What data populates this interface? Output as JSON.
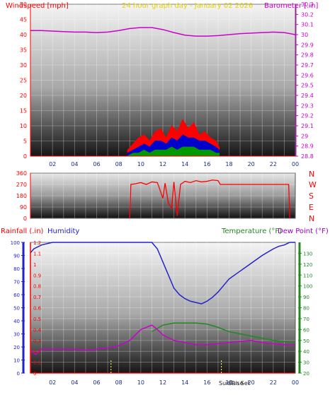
{
  "header": {
    "left_label": "Windspeed [mph]",
    "center_label": "24 hour graph day - January 02 2026",
    "right_label": "Barometer [.in]"
  },
  "direction_letters": [
    "N",
    "W",
    "S",
    "E",
    "N"
  ],
  "lower_header": {
    "rain_label": "Rainfall (.in)",
    "humidity_label": "Humidity",
    "temp_label": "Temperature (°F)",
    "dew_label": "Dew Point (°F)"
  },
  "sun_labels": {
    "sunrise": "Sun Rise",
    "sunset": "Sun Set"
  },
  "colors": {
    "windspeed_label": "#ff0000",
    "header_center": "#ffff00",
    "barometer": "#cc00cc",
    "gust": "#ff0000",
    "avg": "#0000cc",
    "wind_low": "#009900",
    "direction": "#ff0000",
    "humidity": "#2222cc",
    "temperature": "#228822",
    "dewpoint": "#cc00cc",
    "rain_axis": "#ff0000",
    "dew_label": "#9900cc"
  },
  "chart_data": [
    {
      "id": "wind-baro",
      "type": "line",
      "x_ticks": [
        "02",
        "04",
        "06",
        "08",
        "10",
        "12",
        "14",
        "16",
        "18",
        "20",
        "22",
        "00"
      ],
      "y_left_ticks": [
        "0",
        "5",
        "10",
        "15",
        "20",
        "25",
        "30",
        "35",
        "40",
        "45",
        "50"
      ],
      "y_right_ticks": [
        "28.8",
        "28.9",
        "29",
        "29.1",
        "29.2",
        "29.3",
        "29.4",
        "29.5",
        "29.6",
        "29.7",
        "29.8",
        "29.9",
        "30",
        "30.1",
        "30.2",
        "30.3"
      ],
      "ylim_left": [
        0,
        50
      ],
      "ylim_right": [
        28.8,
        30.3
      ],
      "series": [
        {
          "name": "Barometer",
          "axis": "right",
          "x": [
            0,
            1,
            2,
            3,
            4,
            5,
            6,
            7,
            8,
            9,
            10,
            11,
            12,
            13,
            14,
            15,
            16,
            17,
            18,
            19,
            20,
            21,
            22,
            23,
            24
          ],
          "y": [
            30.04,
            30.04,
            30.035,
            30.03,
            30.025,
            30.025,
            30.02,
            30.025,
            30.04,
            30.06,
            30.07,
            30.07,
            30.05,
            30.02,
            29.995,
            29.985,
            29.985,
            29.99,
            30.0,
            30.01,
            30.015,
            30.02,
            30.025,
            30.02,
            30.0
          ]
        },
        {
          "name": "Gust",
          "axis": "left",
          "x": [
            8.8,
            9.3,
            9.8,
            10.3,
            10.8,
            11.3,
            11.8,
            12.3,
            12.8,
            13.3,
            13.8,
            14.3,
            14.8,
            15.3,
            15.8,
            16.3,
            16.8,
            17.1
          ],
          "y": [
            2,
            4,
            6,
            7,
            5,
            8,
            9,
            6,
            10,
            8,
            12,
            9,
            11,
            7,
            8,
            6,
            5,
            3
          ]
        },
        {
          "name": "Average",
          "axis": "left",
          "x": [
            8.8,
            9.3,
            9.8,
            10.3,
            10.8,
            11.3,
            11.8,
            12.3,
            12.8,
            13.3,
            13.8,
            14.3,
            14.8,
            15.3,
            15.8,
            16.3,
            16.8,
            17.1
          ],
          "y": [
            1,
            2,
            3,
            4,
            3,
            5,
            5,
            4,
            6,
            5,
            7,
            6,
            6,
            5,
            5,
            4,
            3,
            2
          ]
        },
        {
          "name": "Low",
          "axis": "left",
          "x": [
            8.8,
            9.3,
            9.8,
            10.3,
            10.8,
            11.3,
            11.8,
            12.3,
            12.8,
            13.3,
            13.8,
            14.3,
            14.8,
            15.3,
            15.8,
            16.3,
            16.8,
            17.1
          ],
          "y": [
            0,
            1,
            1,
            2,
            1,
            2,
            2,
            2,
            3,
            2,
            3,
            3,
            3,
            2,
            2,
            2,
            1,
            1
          ]
        }
      ]
    },
    {
      "id": "direction",
      "type": "line",
      "y_ticks": [
        "0",
        "90",
        "180",
        "270",
        "360"
      ],
      "ylim": [
        0,
        360
      ],
      "series": [
        {
          "name": "Direction",
          "x": [
            9.0,
            9.1,
            9.5,
            10,
            10.5,
            11,
            11.5,
            12,
            12.2,
            12.5,
            12.8,
            13,
            13.3,
            13.6,
            14,
            14.5,
            15,
            15.5,
            16,
            16.5,
            17,
            17.2,
            20,
            22,
            23.4,
            23.5
          ],
          "y": [
            0,
            270,
            275,
            285,
            270,
            290,
            285,
            160,
            280,
            120,
            80,
            290,
            20,
            270,
            295,
            285,
            300,
            290,
            295,
            305,
            300,
            270,
            270,
            270,
            270,
            0
          ]
        }
      ]
    },
    {
      "id": "temp-hum-rain",
      "type": "line",
      "x_ticks": [
        "02",
        "04",
        "06",
        "08",
        "10",
        "12",
        "14",
        "16",
        "18",
        "20",
        "22",
        "00"
      ],
      "y_left_ticks": [
        "0",
        "0.1",
        "0.2",
        "0.3",
        "0.4",
        "0.5",
        "0.6",
        "0.7",
        "0.8",
        "0.9",
        "1",
        "1.1",
        "1.2"
      ],
      "y_humidity_ticks": [
        "0",
        "10",
        "20",
        "30",
        "40",
        "50",
        "60",
        "70",
        "80",
        "90",
        "100"
      ],
      "y_right_ticks": [
        "20",
        "30",
        "40",
        "50",
        "60",
        "70",
        "80",
        "90",
        "100",
        "110",
        "120",
        "130"
      ],
      "ylim_left": [
        0,
        1.2
      ],
      "ylim_humidity": [
        0,
        100
      ],
      "ylim_right": [
        20,
        140
      ],
      "series": [
        {
          "name": "Humidity",
          "axis": "humidity",
          "x": [
            0,
            0.3,
            1,
            2,
            4,
            6,
            8,
            10,
            11,
            11.5,
            12,
            12.5,
            13,
            13.5,
            14,
            14.5,
            15,
            15.5,
            16,
            16.5,
            17,
            17.5,
            18,
            19,
            20,
            21,
            22,
            22.5,
            23,
            23.5,
            24
          ],
          "y": [
            92,
            95,
            98,
            100,
            100,
            100,
            100,
            100,
            100,
            95,
            85,
            75,
            65,
            60,
            57,
            55,
            54,
            53,
            55,
            58,
            62,
            67,
            72,
            78,
            84,
            90,
            95,
            97,
            98,
            100,
            100
          ]
        },
        {
          "name": "Temperature",
          "axis": "right",
          "x": [
            11,
            12,
            13,
            14,
            15,
            16,
            17,
            18,
            19,
            20,
            21,
            22,
            23,
            24
          ],
          "y": [
            58,
            64,
            66,
            66,
            66,
            65,
            62,
            58,
            56,
            54,
            52,
            50,
            49,
            48
          ]
        },
        {
          "name": "Dew Point",
          "axis": "right",
          "x": [
            0,
            0.5,
            1,
            2,
            3,
            4,
            5,
            6,
            7,
            8,
            9,
            10,
            11,
            11.5,
            12,
            13,
            14,
            15,
            16,
            17,
            18,
            19,
            20,
            21,
            22,
            23,
            24
          ],
          "y": [
            41,
            37,
            42,
            42,
            42,
            42,
            41,
            42,
            43,
            45,
            50,
            60,
            64,
            60,
            55,
            50,
            48,
            46,
            46,
            47,
            48,
            49,
            50,
            48,
            47,
            46,
            46
          ]
        }
      ],
      "sun_markers_hours": [
        7.3,
        17.3
      ]
    }
  ]
}
